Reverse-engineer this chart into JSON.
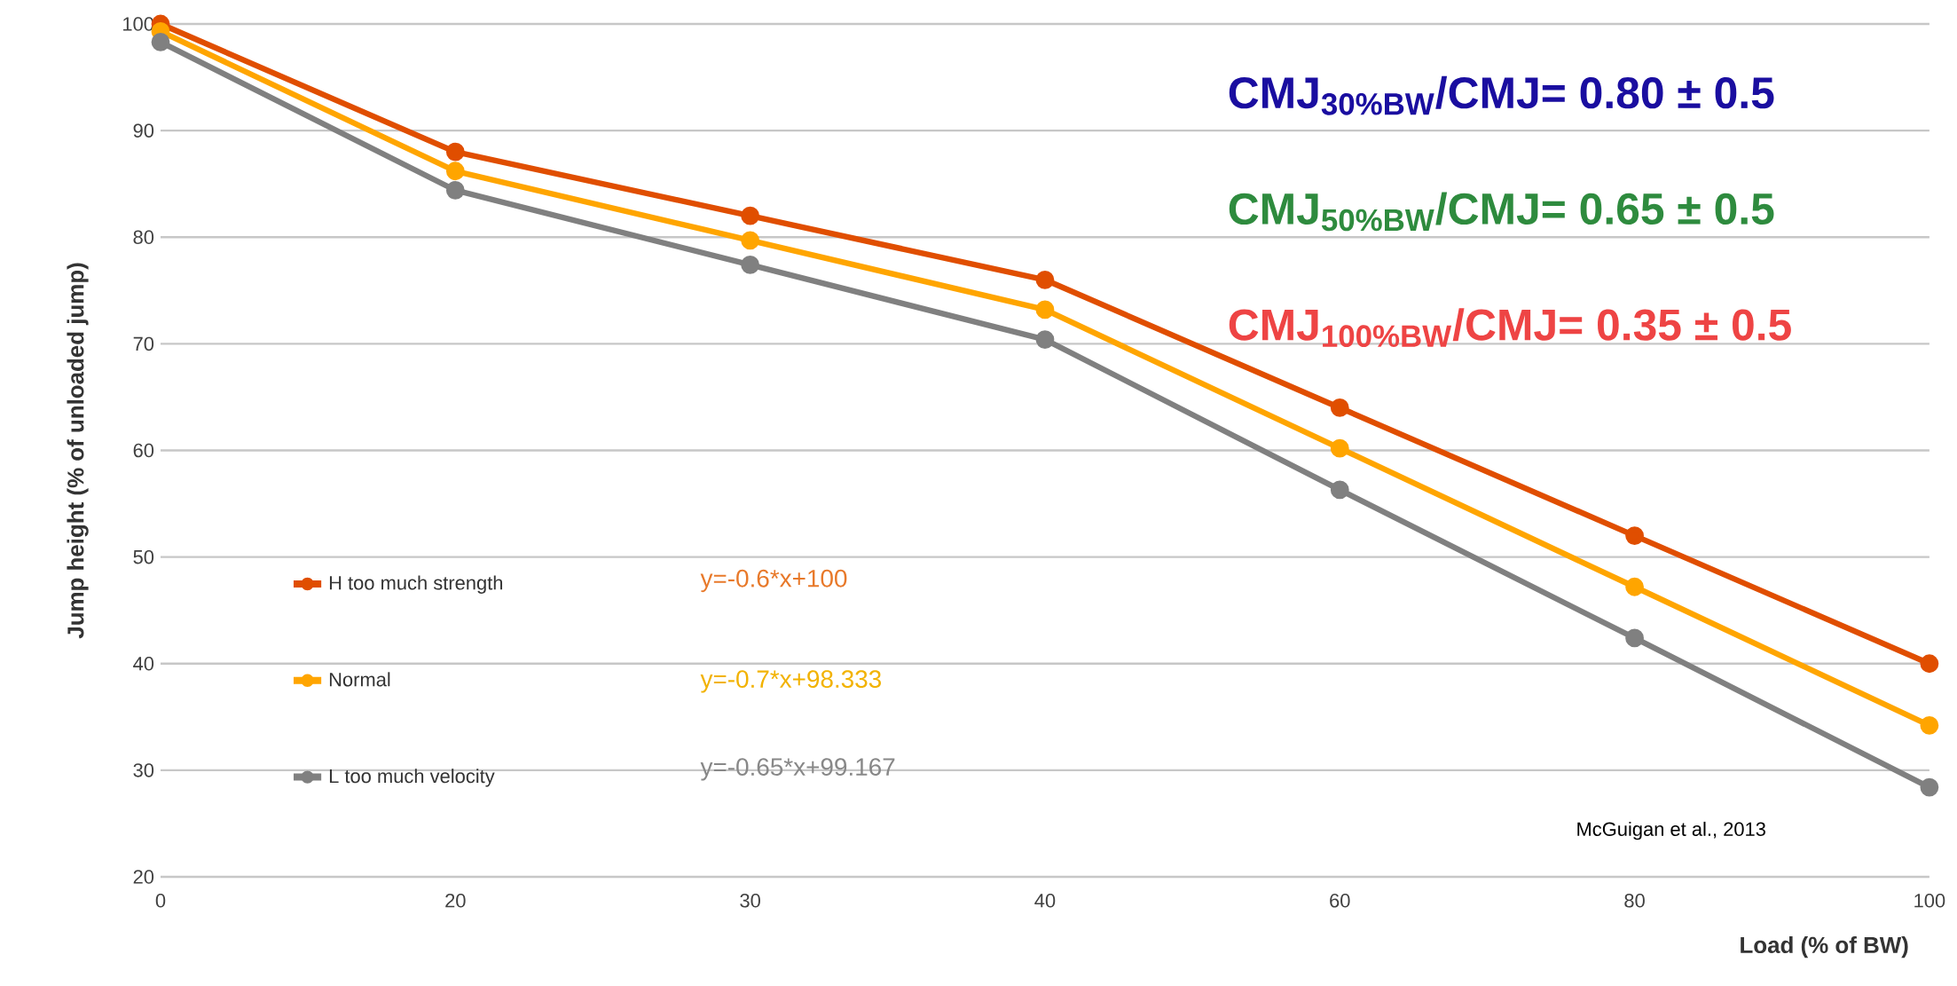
{
  "chart_data": {
    "type": "line",
    "xlabel": "Load (% of BW)",
    "ylabel": "Jump height  (% of unloaded jump)",
    "categories": [
      "0",
      "20",
      "30",
      "40",
      "60",
      "80",
      "100"
    ],
    "series": [
      {
        "name": "H too much strength",
        "color": "#e04e00",
        "values": [
          100,
          88,
          82,
          76,
          64,
          52,
          40
        ]
      },
      {
        "name": "Normal",
        "color": "#ffa500",
        "values": [
          99.3,
          86.2,
          79.7,
          73.2,
          60.2,
          47.2,
          34.2
        ]
      },
      {
        "name": "L too much velocity",
        "color": "#808080",
        "values": [
          98.3,
          84.4,
          77.4,
          70.4,
          56.3,
          42.4,
          28.4
        ]
      }
    ],
    "ylim": [
      20,
      100
    ],
    "yticks": [
      20,
      30,
      40,
      50,
      60,
      70,
      80,
      90,
      100
    ],
    "grid": "y",
    "legend": "left",
    "marker": "circle",
    "line_style": "solid",
    "annotations": [
      "CMJ$_{30%BW}$/CMJ= 0.80 ± 0.5",
      "CMJ$_{50%BW}$/CMJ= 0.65 ± 0.5",
      "CMJ$_{100%BW}$/CMJ= 0.35 ± 0.5",
      "y=-0.6*x+100",
      "y=-0.7*x+98.333",
      "y=-0.65*x+99.167",
      "McGuigan et al., 2013"
    ]
  }
}
